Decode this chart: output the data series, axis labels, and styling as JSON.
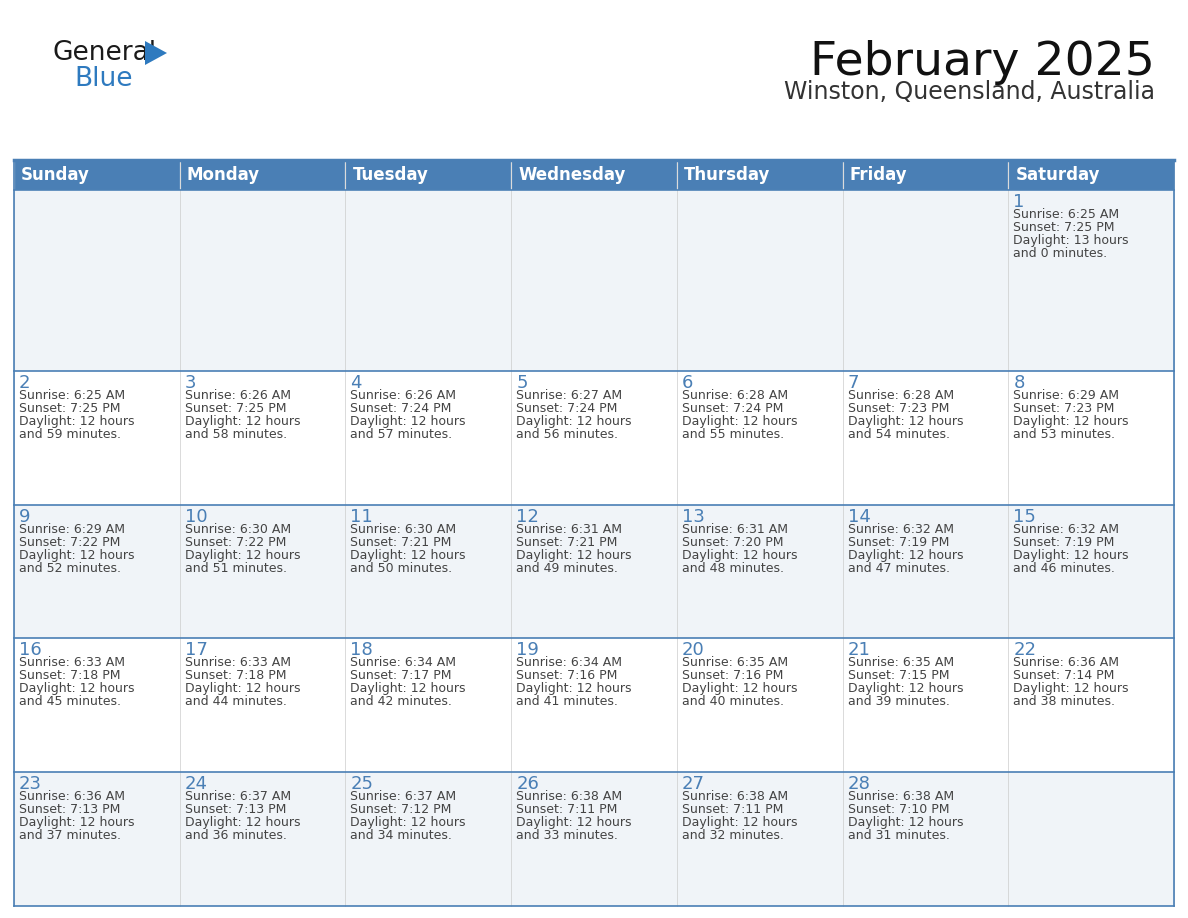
{
  "title": "February 2025",
  "subtitle": "Winston, Queensland, Australia",
  "header_bg_color": "#4a7fb5",
  "header_text_color": "#ffffff",
  "cell_bg_color": "#ffffff",
  "alt_cell_bg_color": "#f0f4f8",
  "border_color": "#4a7fb5",
  "day_number_color": "#4a7fb5",
  "cell_text_color": "#444444",
  "days_of_week": [
    "Sunday",
    "Monday",
    "Tuesday",
    "Wednesday",
    "Thursday",
    "Friday",
    "Saturday"
  ],
  "weeks": [
    [
      {
        "day": 0,
        "sunrise": "",
        "sunset": "",
        "daylight": ""
      },
      {
        "day": 0,
        "sunrise": "",
        "sunset": "",
        "daylight": ""
      },
      {
        "day": 0,
        "sunrise": "",
        "sunset": "",
        "daylight": ""
      },
      {
        "day": 0,
        "sunrise": "",
        "sunset": "",
        "daylight": ""
      },
      {
        "day": 0,
        "sunrise": "",
        "sunset": "",
        "daylight": ""
      },
      {
        "day": 0,
        "sunrise": "",
        "sunset": "",
        "daylight": ""
      },
      {
        "day": 1,
        "sunrise": "Sunrise: 6:25 AM",
        "sunset": "Sunset: 7:25 PM",
        "daylight": "Daylight: 13 hours\nand 0 minutes."
      }
    ],
    [
      {
        "day": 2,
        "sunrise": "Sunrise: 6:25 AM",
        "sunset": "Sunset: 7:25 PM",
        "daylight": "Daylight: 12 hours\nand 59 minutes."
      },
      {
        "day": 3,
        "sunrise": "Sunrise: 6:26 AM",
        "sunset": "Sunset: 7:25 PM",
        "daylight": "Daylight: 12 hours\nand 58 minutes."
      },
      {
        "day": 4,
        "sunrise": "Sunrise: 6:26 AM",
        "sunset": "Sunset: 7:24 PM",
        "daylight": "Daylight: 12 hours\nand 57 minutes."
      },
      {
        "day": 5,
        "sunrise": "Sunrise: 6:27 AM",
        "sunset": "Sunset: 7:24 PM",
        "daylight": "Daylight: 12 hours\nand 56 minutes."
      },
      {
        "day": 6,
        "sunrise": "Sunrise: 6:28 AM",
        "sunset": "Sunset: 7:24 PM",
        "daylight": "Daylight: 12 hours\nand 55 minutes."
      },
      {
        "day": 7,
        "sunrise": "Sunrise: 6:28 AM",
        "sunset": "Sunset: 7:23 PM",
        "daylight": "Daylight: 12 hours\nand 54 minutes."
      },
      {
        "day": 8,
        "sunrise": "Sunrise: 6:29 AM",
        "sunset": "Sunset: 7:23 PM",
        "daylight": "Daylight: 12 hours\nand 53 minutes."
      }
    ],
    [
      {
        "day": 9,
        "sunrise": "Sunrise: 6:29 AM",
        "sunset": "Sunset: 7:22 PM",
        "daylight": "Daylight: 12 hours\nand 52 minutes."
      },
      {
        "day": 10,
        "sunrise": "Sunrise: 6:30 AM",
        "sunset": "Sunset: 7:22 PM",
        "daylight": "Daylight: 12 hours\nand 51 minutes."
      },
      {
        "day": 11,
        "sunrise": "Sunrise: 6:30 AM",
        "sunset": "Sunset: 7:21 PM",
        "daylight": "Daylight: 12 hours\nand 50 minutes."
      },
      {
        "day": 12,
        "sunrise": "Sunrise: 6:31 AM",
        "sunset": "Sunset: 7:21 PM",
        "daylight": "Daylight: 12 hours\nand 49 minutes."
      },
      {
        "day": 13,
        "sunrise": "Sunrise: 6:31 AM",
        "sunset": "Sunset: 7:20 PM",
        "daylight": "Daylight: 12 hours\nand 48 minutes."
      },
      {
        "day": 14,
        "sunrise": "Sunrise: 6:32 AM",
        "sunset": "Sunset: 7:19 PM",
        "daylight": "Daylight: 12 hours\nand 47 minutes."
      },
      {
        "day": 15,
        "sunrise": "Sunrise: 6:32 AM",
        "sunset": "Sunset: 7:19 PM",
        "daylight": "Daylight: 12 hours\nand 46 minutes."
      }
    ],
    [
      {
        "day": 16,
        "sunrise": "Sunrise: 6:33 AM",
        "sunset": "Sunset: 7:18 PM",
        "daylight": "Daylight: 12 hours\nand 45 minutes."
      },
      {
        "day": 17,
        "sunrise": "Sunrise: 6:33 AM",
        "sunset": "Sunset: 7:18 PM",
        "daylight": "Daylight: 12 hours\nand 44 minutes."
      },
      {
        "day": 18,
        "sunrise": "Sunrise: 6:34 AM",
        "sunset": "Sunset: 7:17 PM",
        "daylight": "Daylight: 12 hours\nand 42 minutes."
      },
      {
        "day": 19,
        "sunrise": "Sunrise: 6:34 AM",
        "sunset": "Sunset: 7:16 PM",
        "daylight": "Daylight: 12 hours\nand 41 minutes."
      },
      {
        "day": 20,
        "sunrise": "Sunrise: 6:35 AM",
        "sunset": "Sunset: 7:16 PM",
        "daylight": "Daylight: 12 hours\nand 40 minutes."
      },
      {
        "day": 21,
        "sunrise": "Sunrise: 6:35 AM",
        "sunset": "Sunset: 7:15 PM",
        "daylight": "Daylight: 12 hours\nand 39 minutes."
      },
      {
        "day": 22,
        "sunrise": "Sunrise: 6:36 AM",
        "sunset": "Sunset: 7:14 PM",
        "daylight": "Daylight: 12 hours\nand 38 minutes."
      }
    ],
    [
      {
        "day": 23,
        "sunrise": "Sunrise: 6:36 AM",
        "sunset": "Sunset: 7:13 PM",
        "daylight": "Daylight: 12 hours\nand 37 minutes."
      },
      {
        "day": 24,
        "sunrise": "Sunrise: 6:37 AM",
        "sunset": "Sunset: 7:13 PM",
        "daylight": "Daylight: 12 hours\nand 36 minutes."
      },
      {
        "day": 25,
        "sunrise": "Sunrise: 6:37 AM",
        "sunset": "Sunset: 7:12 PM",
        "daylight": "Daylight: 12 hours\nand 34 minutes."
      },
      {
        "day": 26,
        "sunrise": "Sunrise: 6:38 AM",
        "sunset": "Sunset: 7:11 PM",
        "daylight": "Daylight: 12 hours\nand 33 minutes."
      },
      {
        "day": 27,
        "sunrise": "Sunrise: 6:38 AM",
        "sunset": "Sunset: 7:11 PM",
        "daylight": "Daylight: 12 hours\nand 32 minutes."
      },
      {
        "day": 28,
        "sunrise": "Sunrise: 6:38 AM",
        "sunset": "Sunset: 7:10 PM",
        "daylight": "Daylight: 12 hours\nand 31 minutes."
      },
      {
        "day": 0,
        "sunrise": "",
        "sunset": "",
        "daylight": ""
      }
    ]
  ],
  "logo_text_general": "General",
  "logo_text_blue": "Blue",
  "logo_color_general": "#1a1a1a",
  "logo_color_blue": "#2e7abf",
  "logo_triangle_color": "#2e7abf",
  "title_fontsize": 34,
  "subtitle_fontsize": 17,
  "header_fontsize": 12,
  "day_num_fontsize": 13,
  "cell_fontsize": 9
}
